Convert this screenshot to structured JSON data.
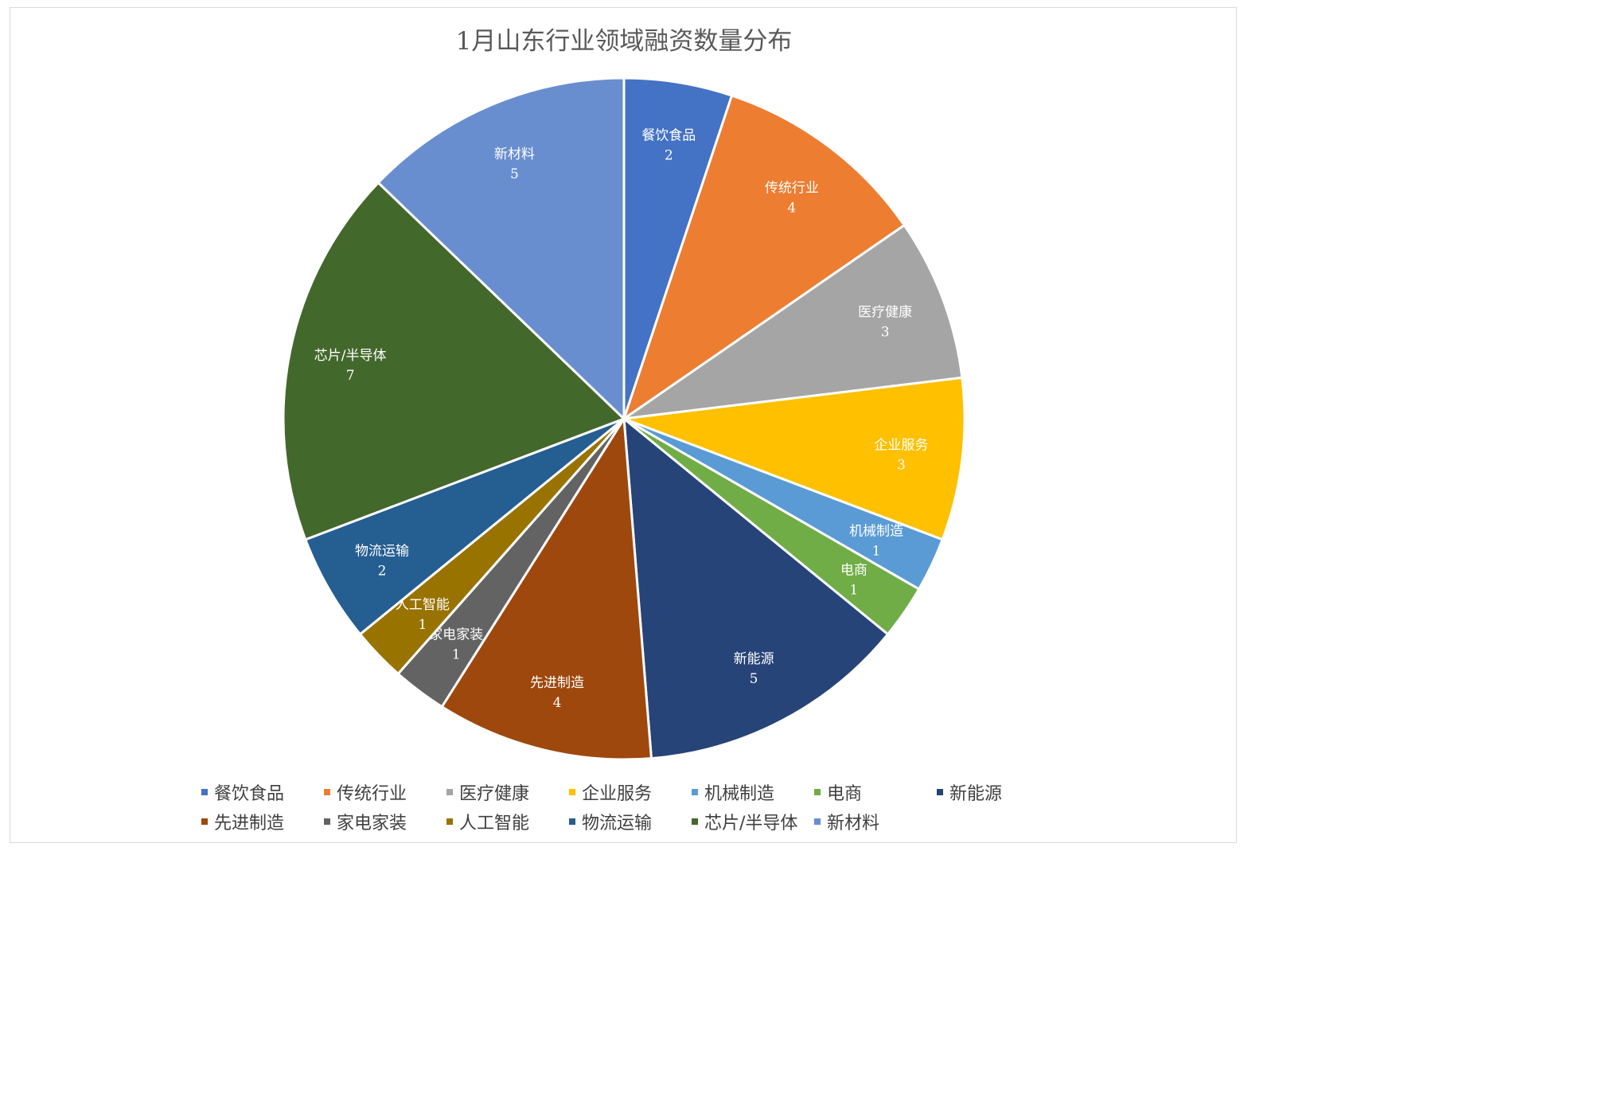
{
  "chart_data": {
    "type": "pie",
    "title": "1月山东行业领域融资数量分布",
    "categories": [
      "餐饮食品",
      "传统行业",
      "医疗健康",
      "企业服务",
      "机械制造",
      "电商",
      "新能源",
      "先进制造",
      "家电家装",
      "人工智能",
      "物流运输",
      "芯片/半导体",
      "新材料"
    ],
    "values": [
      2,
      4,
      3,
      3,
      1,
      1,
      5,
      4,
      1,
      1,
      2,
      7,
      5
    ],
    "colors": [
      "#4472c4",
      "#ed7d31",
      "#a5a5a5",
      "#ffc000",
      "#5b9bd5",
      "#70ad47",
      "#264478",
      "#9e480e",
      "#636363",
      "#997300",
      "#255e91",
      "#43682b",
      "#698ed0"
    ],
    "legend_position": "bottom",
    "data_labels": true
  }
}
